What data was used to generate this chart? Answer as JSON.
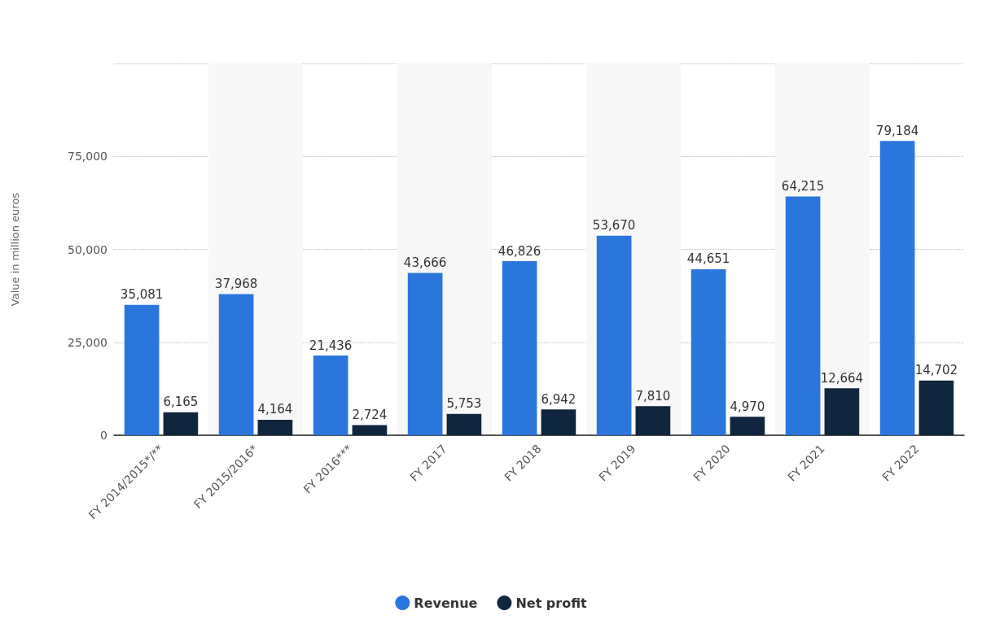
{
  "chart_data": {
    "type": "bar",
    "ylabel": "Value in million euros",
    "categories": [
      "FY 2014/2015*/**",
      "FY 2015/2016*",
      "FY 2016***",
      "FY 2017",
      "FY 2018",
      "FY 2019",
      "FY 2020",
      "FY 2021",
      "FY 2022"
    ],
    "series": [
      {
        "name": "Revenue",
        "color": "#2a76dd",
        "values": [
          35081,
          37968,
          21436,
          43666,
          46826,
          53670,
          44651,
          64215,
          79184
        ],
        "value_labels": [
          "35,081",
          "37,968",
          "21,436",
          "43,666",
          "46,826",
          "53,670",
          "44,651",
          "64,215",
          "79,184"
        ]
      },
      {
        "name": "Net profit",
        "color": "#10263f",
        "values": [
          6165,
          4164,
          2724,
          5753,
          6942,
          7810,
          4970,
          12664,
          14702
        ],
        "value_labels": [
          "6,165",
          "4,164",
          "2,724",
          "5,753",
          "6,942",
          "7,810",
          "4,970",
          "12,664",
          "14,702"
        ]
      }
    ],
    "ylim": [
      0,
      100000
    ],
    "yticks": [
      0,
      {
        "value": 25000,
        "label": "25,000"
      },
      {
        "value": 50000,
        "label": "50,000"
      },
      {
        "value": 75000,
        "label": "75,000"
      },
      {
        "value": 100000,
        "label": null
      }
    ],
    "grid": "y",
    "legend": "bottom"
  }
}
